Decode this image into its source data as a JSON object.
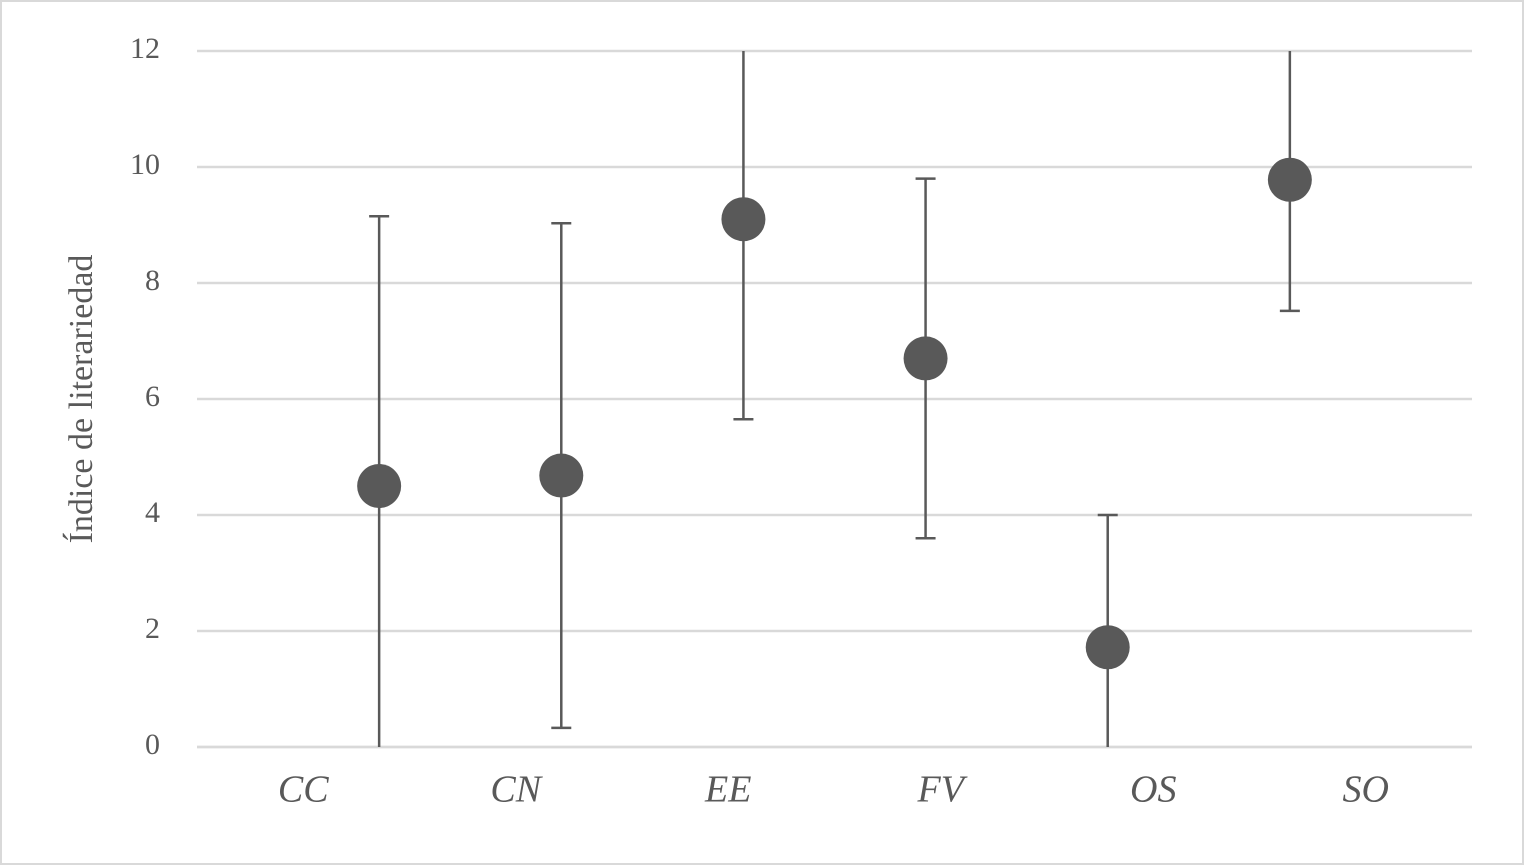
{
  "chart_data": {
    "type": "errorbar",
    "ylabel": "Índice de literariedad",
    "categories": [
      "CC",
      "CN",
      "EE",
      "FV",
      "OS",
      "SO"
    ],
    "values": [
      4.5,
      4.68,
      9.1,
      6.7,
      1.72,
      9.78
    ],
    "errors": [
      4.65,
      4.35,
      3.45,
      3.1,
      2.28,
      2.26
    ],
    "color": "#595959",
    "ylim": [
      0,
      12
    ],
    "yticks": [
      0,
      2,
      4,
      6,
      8,
      10,
      12
    ],
    "grid": true
  }
}
